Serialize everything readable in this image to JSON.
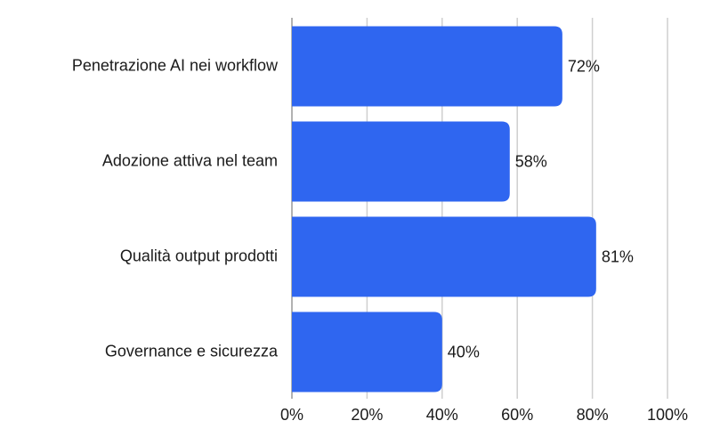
{
  "chart_data": {
    "type": "bar",
    "orientation": "horizontal",
    "categories": [
      "Penetrazione AI nei workflow",
      "Adozione attiva nel team",
      "Qualità output prodotti",
      "Governance e sicurezza"
    ],
    "values": [
      72,
      58,
      81,
      40
    ],
    "value_labels": [
      "72%",
      "58%",
      "81%",
      "40%"
    ],
    "color": "#2f66f0",
    "xlim": [
      0,
      100
    ],
    "xticks": [
      {
        "value": 0,
        "label": "0%"
      },
      {
        "value": 20,
        "label": "20%"
      },
      {
        "value": 40,
        "label": "40%"
      },
      {
        "value": 60,
        "label": "60%"
      },
      {
        "value": 80,
        "label": "80%"
      },
      {
        "value": 100,
        "label": "100%"
      }
    ],
    "grid": true
  }
}
